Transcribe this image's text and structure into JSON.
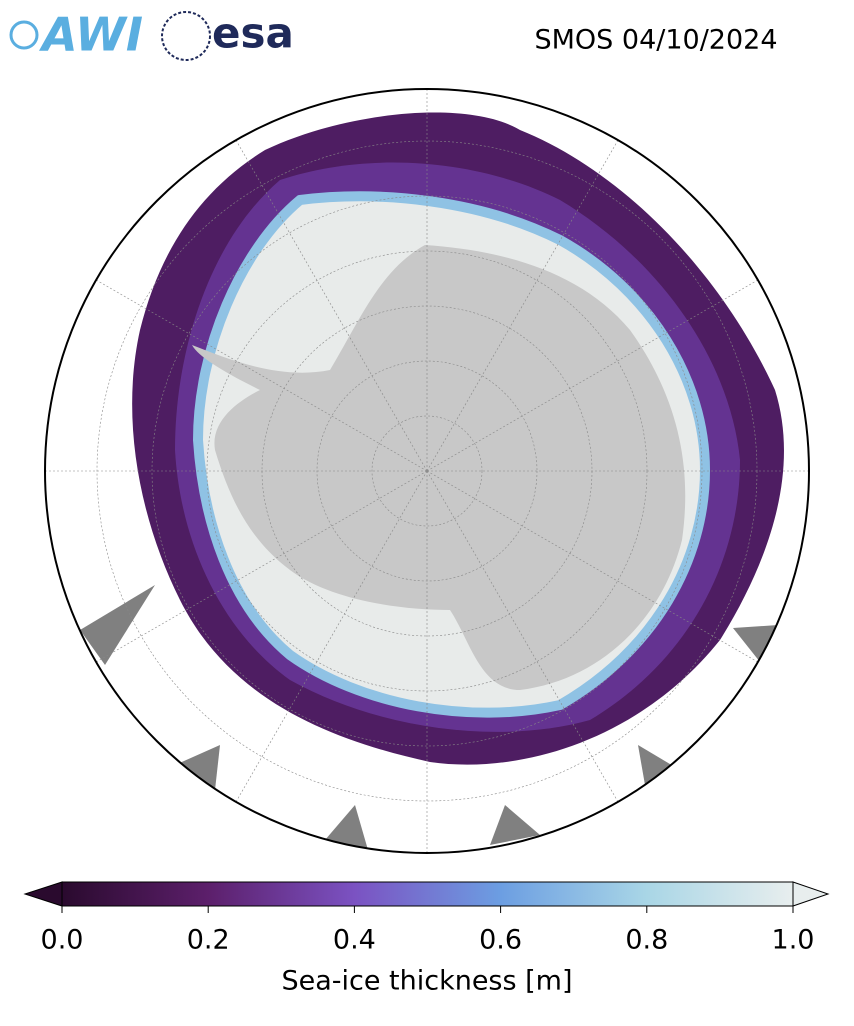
{
  "title": "SMOS 04/10/2024",
  "logos": [
    {
      "text": "AWI",
      "color": "#5aaee0"
    },
    {
      "text": "esa",
      "color": "#1f2a5a"
    }
  ],
  "colorbar": {
    "label": "Sea-ice thickness [m]",
    "lim": [
      0,
      1
    ],
    "ticks": [
      {
        "value": 0,
        "label": "0.0"
      },
      {
        "value": 0.2,
        "label": "0.2"
      },
      {
        "value": 0.4,
        "label": "0.4"
      },
      {
        "value": 0.6,
        "label": "0.6"
      },
      {
        "value": 0.8,
        "label": "0.8"
      },
      {
        "value": 1,
        "label": "1.0"
      }
    ],
    "colors": [
      "#2a0a2e",
      "#5c1f6b",
      "#7b52c2",
      "#6c9ee2",
      "#a9d6e6",
      "#e8eeee"
    ]
  }
}
